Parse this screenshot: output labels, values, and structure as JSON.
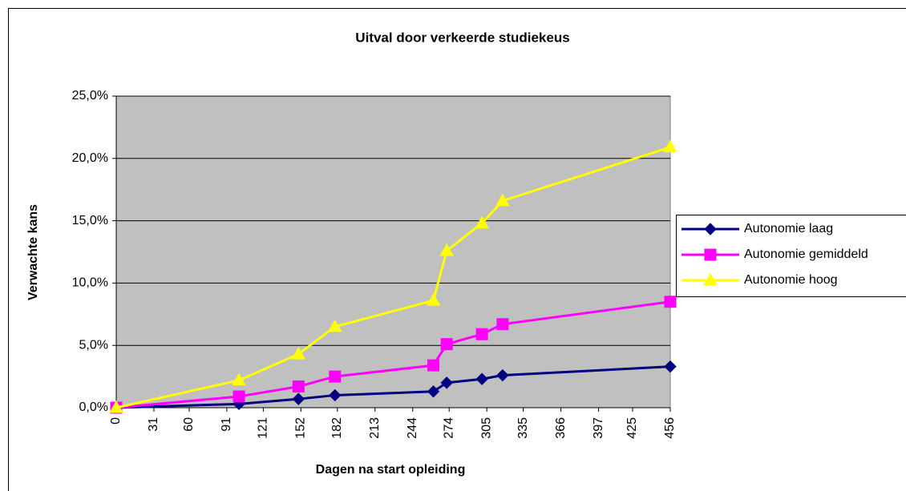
{
  "chart_data": {
    "type": "line",
    "title": "Uitval door verkeerde studiekeus",
    "x_label": "Dagen na start opleiding",
    "y_label": "Verwachte kans",
    "x": [
      0,
      101,
      150,
      180,
      261,
      272,
      301,
      318,
      456
    ],
    "series": [
      {
        "name": "Autonomie laag",
        "color": "#000080",
        "marker": "diamond",
        "values": [
          0,
          0.3,
          0.7,
          1.0,
          1.3,
          2.0,
          2.3,
          2.6,
          3.3
        ]
      },
      {
        "name": "Autonomie gemiddeld",
        "color": "#ff00ff",
        "marker": "square",
        "values": [
          0,
          0.9,
          1.7,
          2.5,
          3.4,
          5.1,
          5.9,
          6.7,
          8.5
        ]
      },
      {
        "name": "Autonomie hoog",
        "color": "#ffff00",
        "marker": "triangle",
        "values": [
          0,
          2.2,
          4.3,
          6.5,
          8.6,
          12.6,
          14.8,
          16.6,
          20.9
        ]
      }
    ],
    "xlim": [
      0,
      456
    ],
    "xticks": [
      0,
      31,
      60,
      91,
      121,
      152,
      182,
      213,
      244,
      274,
      305,
      335,
      366,
      397,
      425,
      456
    ],
    "ylim": [
      0,
      25
    ],
    "yticks": [
      {
        "value": 0,
        "label": "0,0%"
      },
      {
        "value": 5,
        "label": "5,0%"
      },
      {
        "value": 10,
        "label": "10,0%"
      },
      {
        "value": 15,
        "label": "15,0%"
      },
      {
        "value": 20,
        "label": "20,0%"
      },
      {
        "value": 25,
        "label": "25,0%"
      }
    ],
    "grid": true,
    "legend": "right"
  }
}
